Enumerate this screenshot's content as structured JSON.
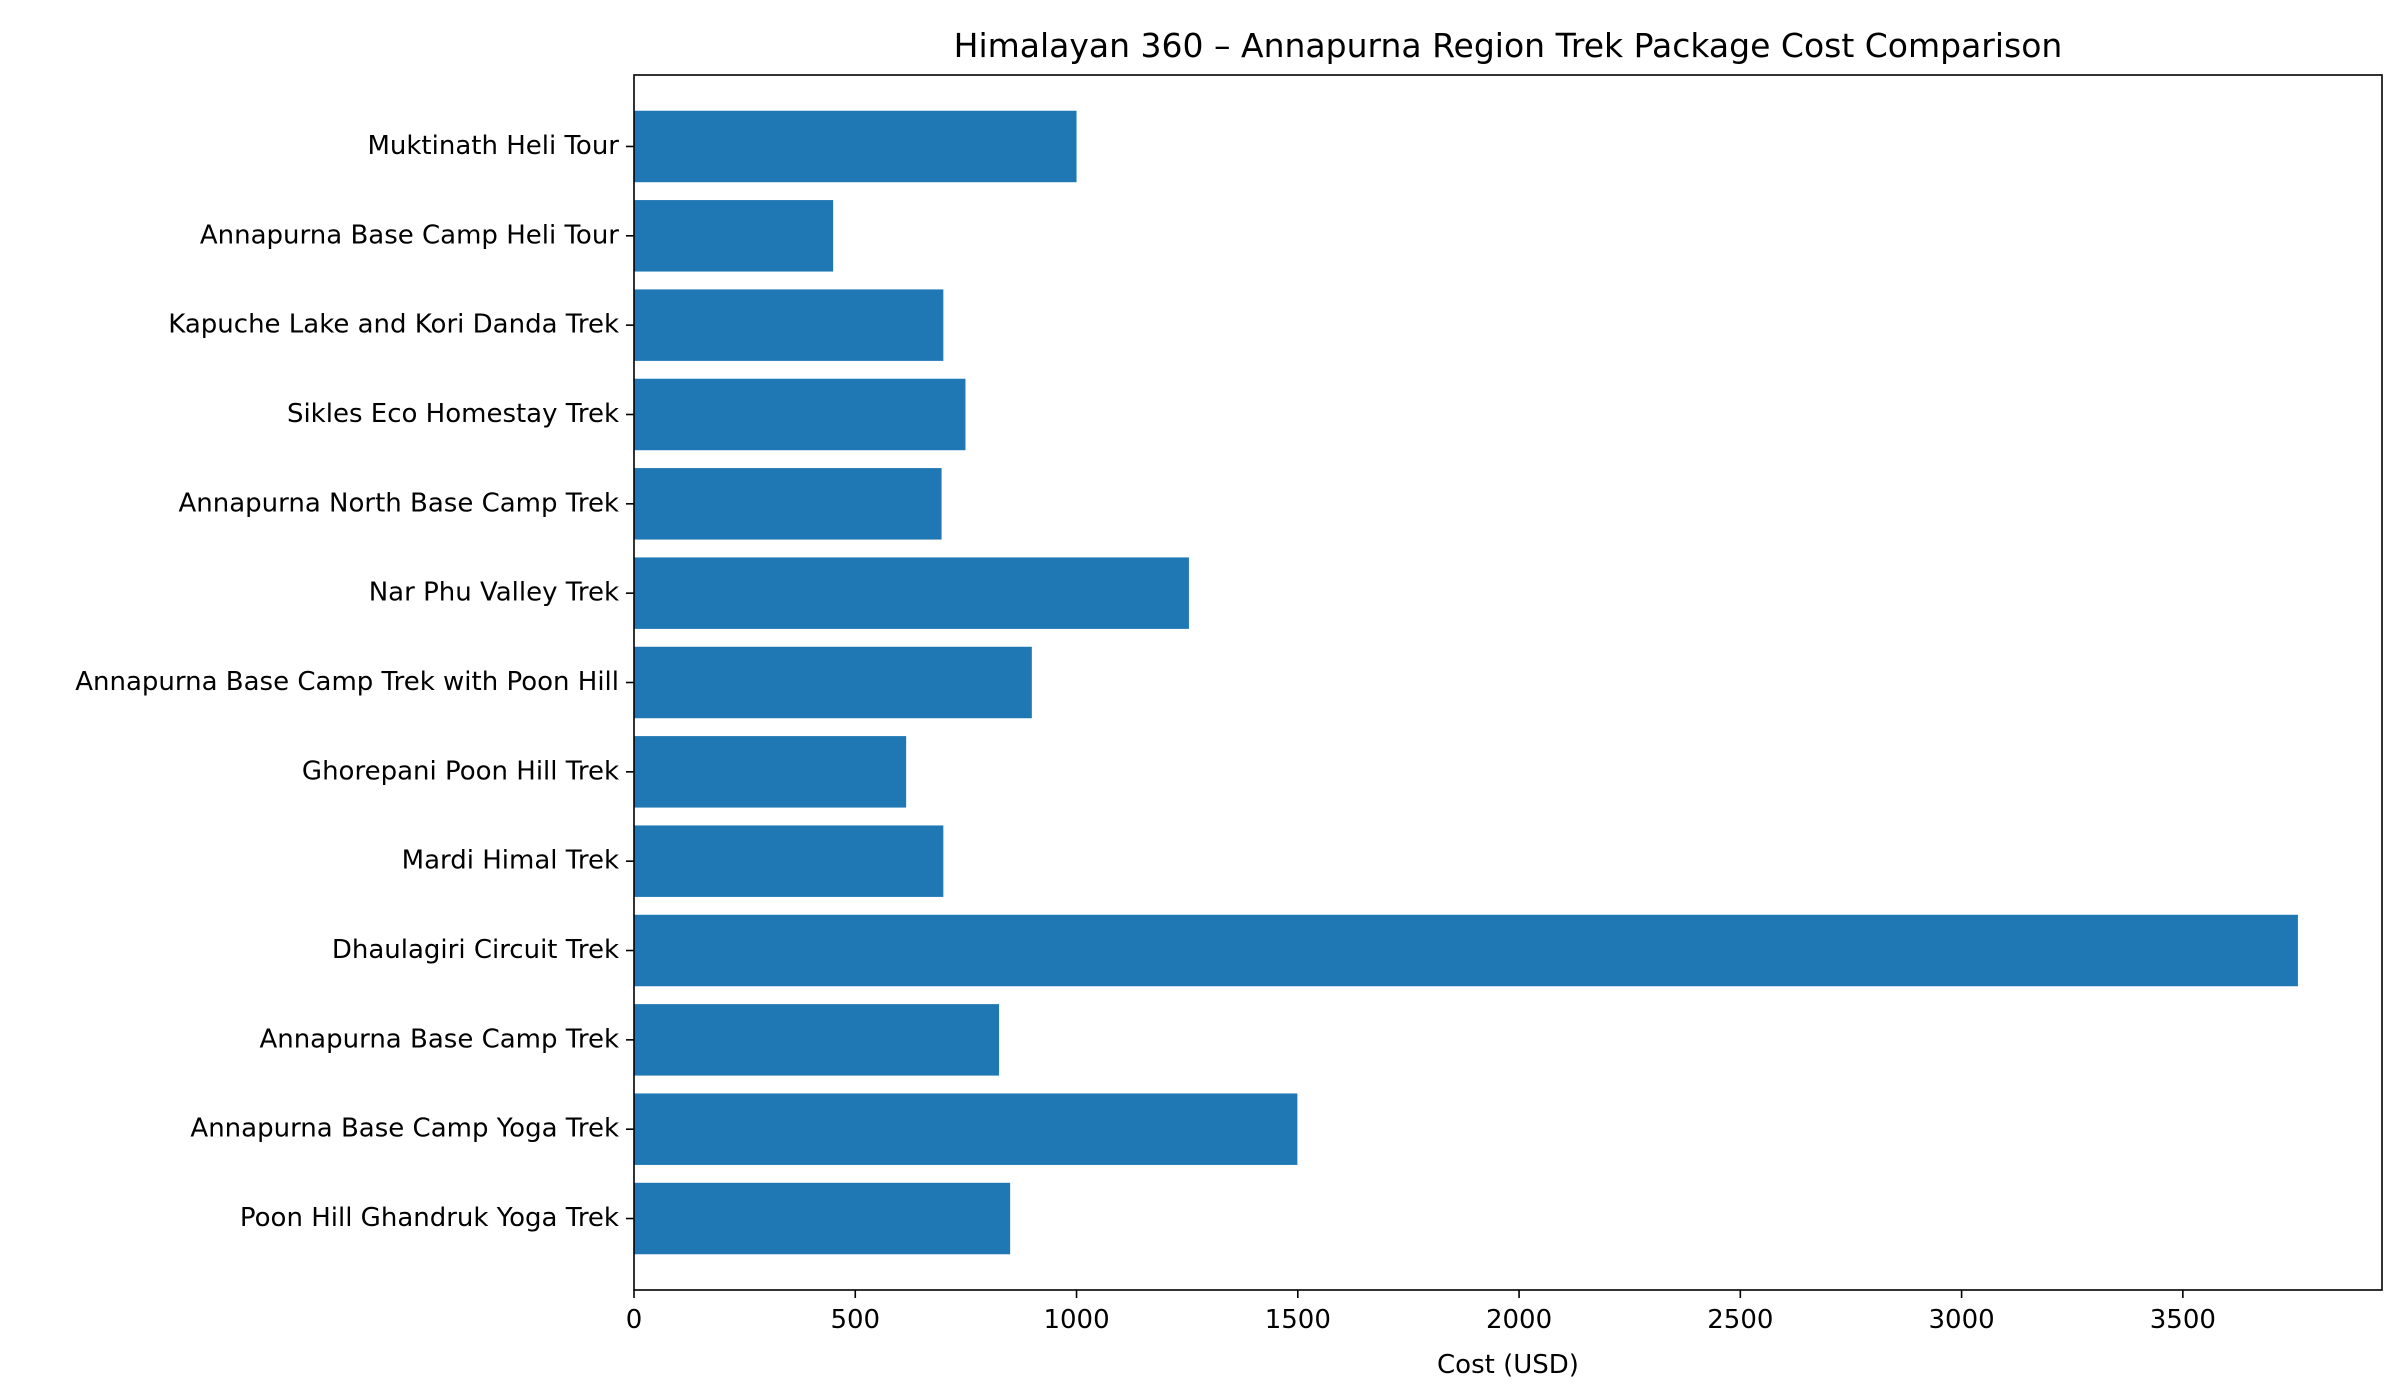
{
  "chart_data": {
    "type": "bar",
    "orientation": "horizontal",
    "title": "Himalayan 360 – Annapurna Region Trek Package Cost Comparison",
    "xlabel": "Cost (USD)",
    "ylabel": "",
    "categories": [
      "Muktinath Heli Tour",
      "Annapurna Base Camp Heli Tour",
      "Kapuche Lake and Kori Danda Trek",
      "Sikles Eco Homestay Trek",
      "Annapurna North Base Camp Trek",
      "Nar Phu Valley Trek",
      "Annapurna Base Camp Trek with Poon Hill",
      "Ghorepani Poon Hill Trek",
      "Mardi Himal Trek",
      "Dhaulagiri Circuit Trek",
      "Annapurna Base Camp Trek",
      "Annapurna Base Camp Yoga Trek",
      "Poon Hill Ghandruk Yoga Trek"
    ],
    "values": [
      1000,
      450,
      699,
      749,
      695,
      1254,
      899,
      615,
      699,
      3760,
      825,
      1499,
      850
    ],
    "xlim": [
      0,
      3950
    ],
    "xticks": [
      0,
      500,
      1000,
      1500,
      2000,
      2500,
      3000,
      3500
    ],
    "grid": false,
    "legend": "none",
    "bar_color": "#1f77b4"
  }
}
